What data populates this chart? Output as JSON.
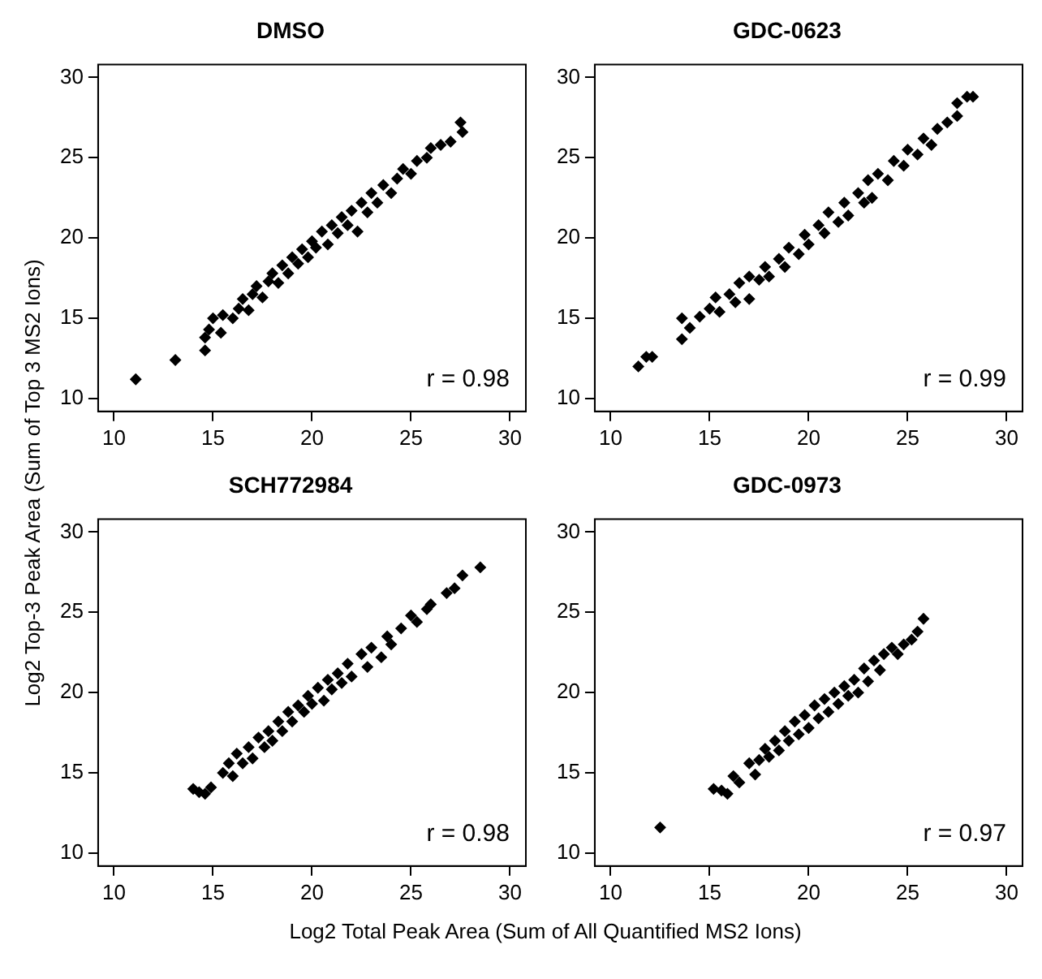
{
  "chart_data": [
    {
      "type": "scatter",
      "title": "DMSO",
      "xlabel": "Log2 Total Peak Area (Sum of All Quantified MS2 Ions)",
      "ylabel": "Log2 Top-3 Peak Area (Sum of Top 3 MS2 Ions)",
      "color": "#000000",
      "marker": "diamond",
      "xlim": [
        9.2,
        30.8
      ],
      "ylim": [
        9.2,
        30.8
      ],
      "xticks": [
        10,
        15,
        20,
        25,
        30
      ],
      "yticks": [
        10,
        15,
        20,
        25,
        30
      ],
      "annotations": [
        "r = 0.98"
      ],
      "x": [
        11.1,
        13.1,
        14.6,
        14.6,
        14.8,
        15.0,
        15.4,
        15.5,
        16.0,
        16.3,
        16.5,
        16.8,
        17.0,
        17.2,
        17.5,
        17.8,
        18.0,
        18.3,
        18.5,
        18.8,
        19.0,
        19.3,
        19.5,
        19.8,
        20.0,
        20.2,
        20.5,
        20.8,
        21.0,
        21.3,
        21.5,
        21.8,
        22.0,
        22.3,
        22.5,
        22.8,
        23.0,
        23.3,
        23.6,
        24.0,
        24.3,
        24.6,
        25.0,
        25.3,
        25.8,
        26.0,
        26.5,
        27.0,
        27.5,
        27.6
      ],
      "values": [
        11.2,
        12.4,
        13.0,
        13.8,
        14.3,
        15.0,
        14.1,
        15.2,
        15.0,
        15.6,
        16.2,
        15.5,
        16.5,
        17.0,
        16.3,
        17.3,
        17.8,
        17.2,
        18.3,
        17.8,
        18.8,
        18.4,
        19.3,
        18.8,
        19.8,
        19.4,
        20.4,
        19.6,
        20.8,
        20.3,
        21.3,
        20.8,
        21.7,
        20.4,
        22.2,
        21.6,
        22.8,
        22.2,
        23.3,
        22.8,
        23.7,
        24.3,
        24.0,
        24.8,
        25.0,
        25.6,
        25.8,
        26.0,
        27.2,
        26.6
      ]
    },
    {
      "type": "scatter",
      "title": "GDC-0623",
      "color": "#000000",
      "marker": "diamond",
      "xlim": [
        9.2,
        30.8
      ],
      "ylim": [
        9.2,
        30.8
      ],
      "xticks": [
        10,
        15,
        20,
        25,
        30
      ],
      "yticks": [
        10,
        15,
        20,
        25,
        30
      ],
      "annotations": [
        "r = 0.99"
      ],
      "x": [
        11.4,
        11.8,
        12.1,
        13.6,
        13.6,
        14.0,
        14.5,
        15.0,
        15.3,
        15.5,
        16.0,
        16.3,
        16.5,
        17.0,
        17.0,
        17.5,
        17.8,
        18.0,
        18.5,
        18.8,
        19.0,
        19.5,
        19.8,
        20.0,
        20.5,
        20.8,
        21.0,
        21.5,
        21.8,
        22.0,
        22.5,
        22.8,
        23.0,
        23.2,
        23.5,
        24.0,
        24.3,
        24.8,
        25.0,
        25.5,
        25.8,
        26.2,
        26.5,
        27.0,
        27.5,
        27.5,
        28.0,
        28.3
      ],
      "values": [
        12.0,
        12.6,
        12.6,
        15.0,
        13.7,
        14.4,
        15.1,
        15.6,
        16.3,
        15.4,
        16.5,
        16.0,
        17.2,
        16.2,
        17.6,
        17.4,
        18.2,
        17.6,
        18.7,
        18.2,
        19.4,
        19.0,
        20.2,
        19.6,
        20.8,
        20.3,
        21.6,
        21.0,
        22.2,
        21.4,
        22.8,
        22.2,
        23.6,
        22.5,
        24.0,
        23.6,
        24.8,
        24.5,
        25.5,
        25.2,
        26.2,
        25.8,
        26.8,
        27.2,
        27.6,
        28.4,
        28.8,
        28.8
      ]
    },
    {
      "type": "scatter",
      "title": "SCH772984",
      "color": "#000000",
      "marker": "diamond",
      "xlim": [
        9.2,
        30.8
      ],
      "ylim": [
        9.2,
        30.8
      ],
      "xticks": [
        10,
        15,
        20,
        25,
        30
      ],
      "yticks": [
        10,
        15,
        20,
        25,
        30
      ],
      "annotations": [
        "r = 0.98"
      ],
      "x": [
        14.0,
        14.3,
        14.6,
        14.9,
        15.5,
        15.8,
        16.0,
        16.2,
        16.5,
        16.8,
        17.0,
        17.3,
        17.6,
        17.8,
        18.0,
        18.3,
        18.5,
        18.8,
        19.0,
        19.3,
        19.6,
        19.8,
        20.0,
        20.3,
        20.6,
        20.8,
        21.0,
        21.3,
        21.5,
        21.8,
        22.0,
        22.5,
        22.8,
        23.0,
        23.5,
        23.8,
        24.0,
        24.5,
        25.0,
        25.3,
        25.8,
        26.0,
        26.8,
        27.2,
        27.6,
        28.5
      ],
      "values": [
        14.0,
        13.8,
        13.7,
        14.1,
        15.0,
        15.6,
        14.8,
        16.2,
        15.6,
        16.6,
        15.9,
        17.2,
        16.6,
        17.6,
        17.0,
        18.2,
        17.6,
        18.8,
        18.2,
        19.2,
        18.8,
        19.8,
        19.3,
        20.3,
        19.5,
        20.8,
        20.2,
        21.2,
        20.6,
        21.8,
        21.0,
        22.4,
        21.6,
        22.8,
        22.2,
        23.5,
        23.0,
        24.0,
        24.8,
        24.4,
        25.2,
        25.5,
        26.2,
        26.5,
        27.3,
        27.8
      ]
    },
    {
      "type": "scatter",
      "title": "GDC-0973",
      "color": "#000000",
      "marker": "diamond",
      "xlim": [
        9.2,
        30.8
      ],
      "ylim": [
        9.2,
        30.8
      ],
      "xticks": [
        10,
        15,
        20,
        25,
        30
      ],
      "yticks": [
        10,
        15,
        20,
        25,
        30
      ],
      "annotations": [
        "r = 0.97"
      ],
      "x": [
        12.5,
        15.2,
        15.6,
        15.9,
        16.2,
        16.5,
        17.0,
        17.3,
        17.5,
        17.8,
        18.0,
        18.3,
        18.5,
        18.8,
        19.0,
        19.3,
        19.5,
        19.8,
        20.0,
        20.3,
        20.5,
        20.8,
        21.0,
        21.3,
        21.5,
        21.8,
        22.0,
        22.3,
        22.5,
        22.8,
        23.0,
        23.3,
        23.6,
        23.8,
        24.2,
        24.5,
        24.8,
        25.2,
        25.5,
        25.8
      ],
      "values": [
        11.6,
        14.0,
        13.9,
        13.7,
        14.8,
        14.4,
        15.6,
        14.9,
        15.8,
        16.5,
        16.0,
        17.0,
        16.4,
        17.6,
        17.0,
        18.2,
        17.4,
        18.6,
        17.8,
        19.2,
        18.4,
        19.6,
        18.8,
        20.0,
        19.3,
        20.4,
        19.8,
        20.8,
        20.0,
        21.5,
        20.7,
        22.0,
        21.4,
        22.4,
        22.8,
        22.4,
        23.0,
        23.3,
        23.8,
        24.6
      ]
    }
  ]
}
